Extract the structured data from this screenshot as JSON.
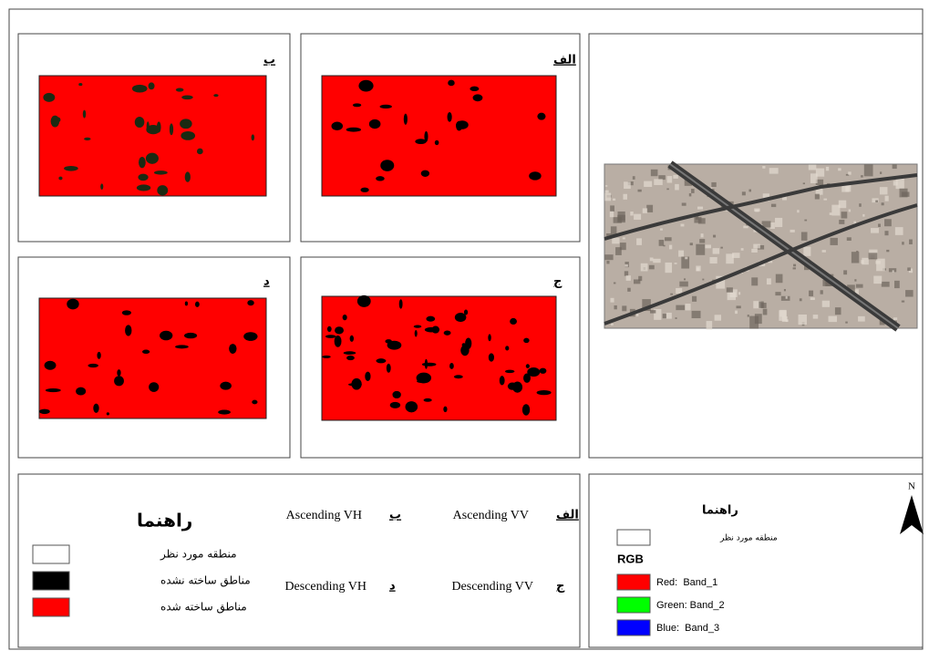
{
  "panels": [
    {
      "label": "الف"
    },
    {
      "label": "ب"
    },
    {
      "label": "ج"
    },
    {
      "label": "د"
    }
  ],
  "legend": {
    "title": "راهنما",
    "items": [
      {
        "label": "منطقه مورد نظر"
      },
      {
        "label": "مناطق ساخته نشده"
      },
      {
        "label": "مناطق ساخته شده"
      }
    ]
  },
  "key": [
    {
      "letter": "الف",
      "name": "Ascending VV"
    },
    {
      "letter": "ب",
      "name": "Ascending VH"
    },
    {
      "letter": "ج",
      "name": "Descending VV"
    },
    {
      "letter": "د",
      "name": "Descending VH"
    }
  ],
  "rgb_legend": {
    "title": "راهنما",
    "aoi": "منطقه مورد نظر",
    "heading": "RGB",
    "bands": [
      "Red:  Band_1",
      "Green: Band_2",
      "Blue:  Band_3"
    ]
  },
  "north": "N"
}
